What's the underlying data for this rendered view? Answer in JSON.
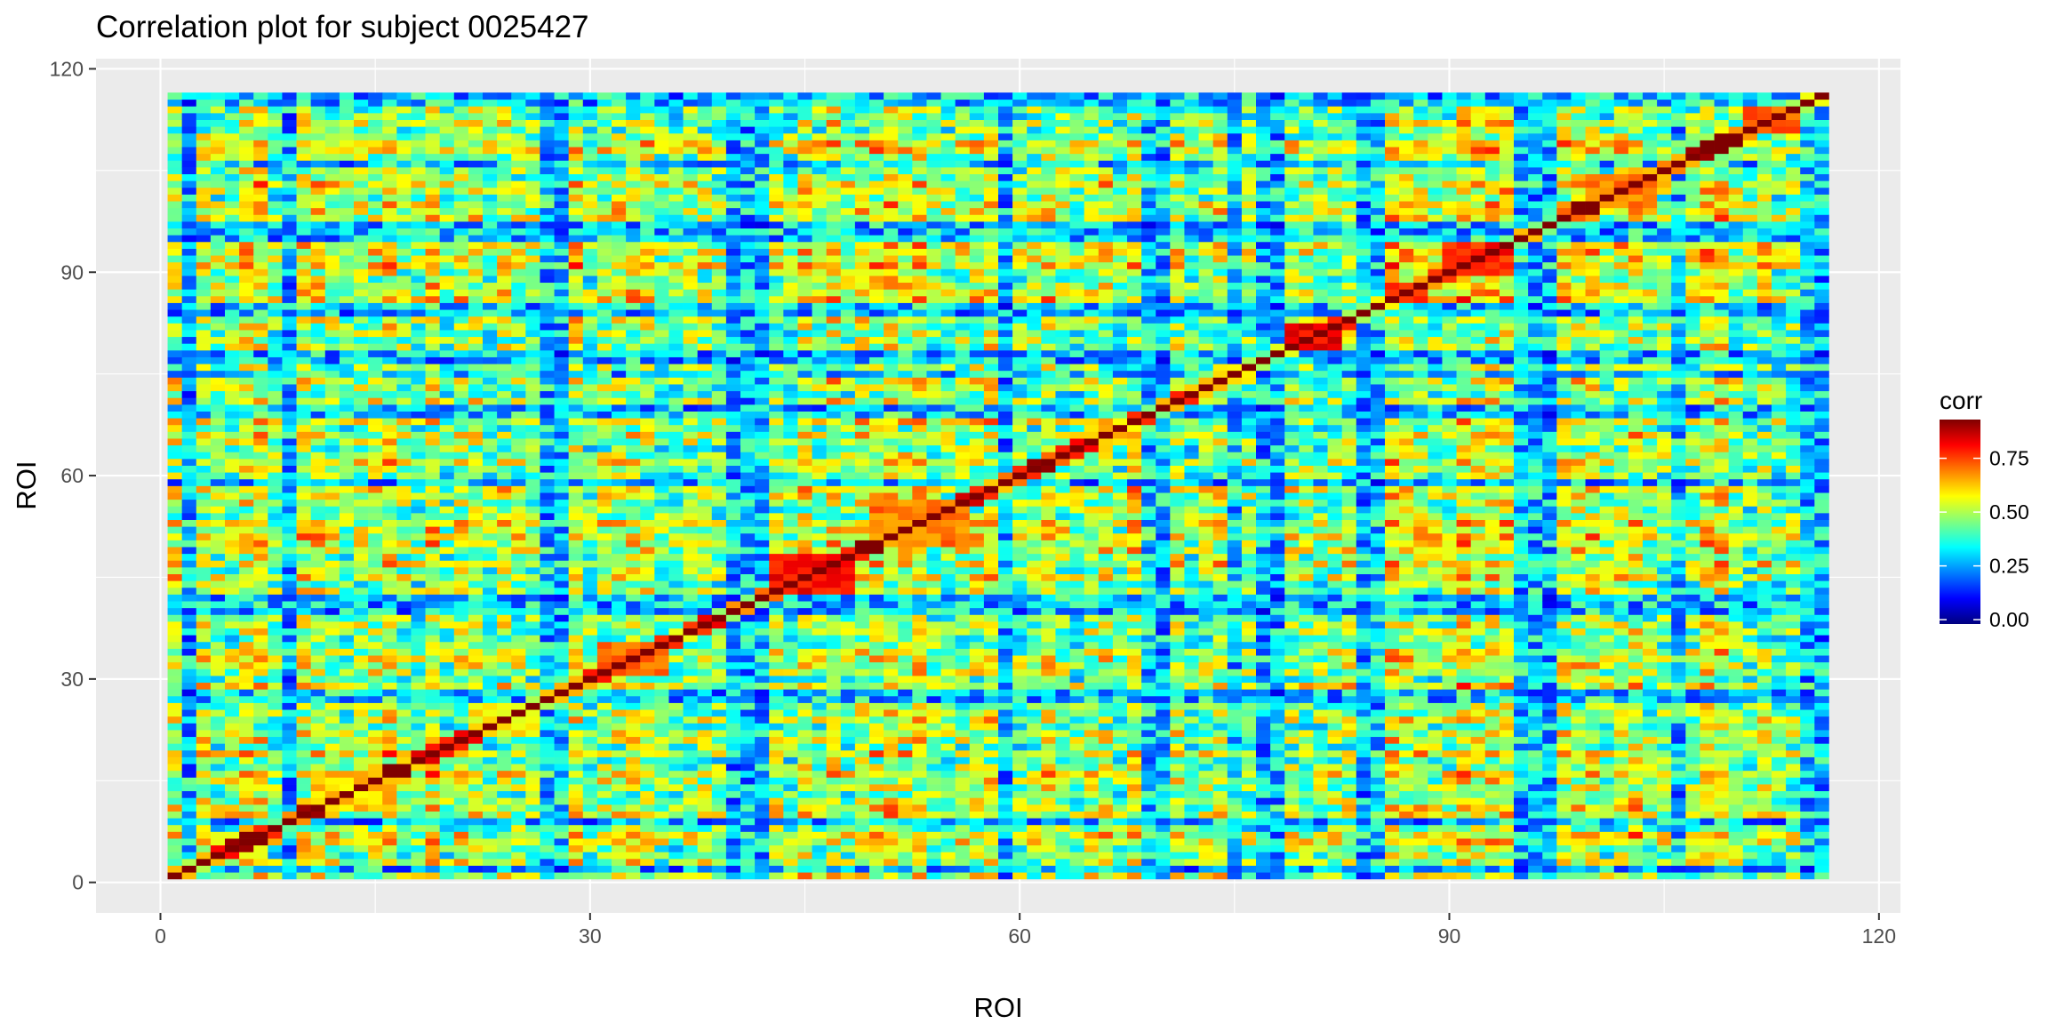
{
  "chart_data": {
    "type": "heatmap",
    "title": "Correlation plot for subject 0025427",
    "xlabel": "ROI",
    "ylabel": "ROI",
    "xlim": [
      -4.5,
      121.5
    ],
    "ylim": [
      -4.5,
      121.5
    ],
    "x_ticks": [
      0,
      30,
      60,
      90,
      120
    ],
    "y_ticks": [
      0,
      30,
      60,
      90,
      120
    ],
    "n_rois": 116,
    "legend": {
      "title": "corr",
      "placement": "right",
      "ticks": [
        0.0,
        0.25,
        0.5,
        0.75
      ],
      "tick_labels": [
        "0.00",
        "0.25",
        "0.50",
        "0.75"
      ],
      "range": [
        -0.02,
        0.93
      ]
    },
    "colorscale": [
      "#00007F",
      "#0000FF",
      "#007FFF",
      "#00FFFF",
      "#7FFF7F",
      "#FFFF00",
      "#FF7F00",
      "#FF0000",
      "#7F0000"
    ],
    "grid": true,
    "panel_background": "#EBEBEB",
    "gridline_color": "#FFFFFF",
    "blocks": [
      {
        "x": [
          43,
          48
        ],
        "y": [
          43,
          48
        ],
        "value": 0.8
      },
      {
        "x": [
          79,
          82
        ],
        "y": [
          79,
          82
        ],
        "value": 0.82
      },
      {
        "x": [
          90,
          94
        ],
        "y": [
          90,
          94
        ],
        "value": 0.78
      },
      {
        "x": [
          31,
          35
        ],
        "y": [
          31,
          35
        ],
        "value": 0.72
      },
      {
        "x": [
          50,
          56
        ],
        "y": [
          50,
          56
        ],
        "value": 0.7
      },
      {
        "x": [
          11,
          16
        ],
        "y": [
          11,
          16
        ],
        "value": 0.62
      },
      {
        "x": [
          100,
          104
        ],
        "y": [
          100,
          104
        ],
        "value": 0.7
      },
      {
        "x": [
          111,
          114
        ],
        "y": [
          111,
          114
        ],
        "value": 0.72
      },
      {
        "x": [
          86,
          88
        ],
        "y": [
          86,
          88
        ],
        "value": 0.78
      },
      {
        "x": [
          65,
          68
        ],
        "y": [
          65,
          68
        ],
        "value": 0.62
      },
      {
        "x": [
          22,
          26
        ],
        "y": [
          22,
          26
        ],
        "value": 0.58
      }
    ],
    "low_rois": [
      2,
      9,
      27,
      28,
      40,
      41,
      42,
      59,
      69,
      70,
      75,
      77,
      78,
      84,
      85,
      95,
      96,
      97,
      106,
      115,
      116
    ]
  }
}
